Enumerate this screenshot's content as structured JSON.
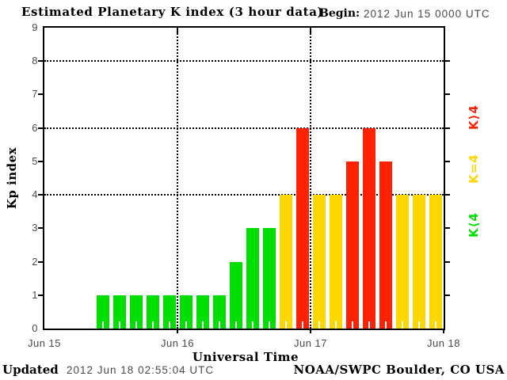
{
  "header": {
    "title": "Estimated Planetary K index (3 hour data)",
    "begin_label": "Begin:",
    "begin_value": "2012 Jun 15 0000 UTC"
  },
  "footer": {
    "updated_label": "Updated",
    "updated_value": "2012 Jun 18 02:55:04 UTC",
    "credit": "NOAA/SWPC Boulder, CO USA"
  },
  "chart_data": {
    "type": "bar",
    "title": "Estimated Planetary K index (3 hour data)",
    "begin": "2012 Jun 15 0000 UTC",
    "xlabel": "Universal Time",
    "ylabel": "Kp index",
    "ylim": [
      0,
      9
    ],
    "yticks": [
      0,
      1,
      2,
      3,
      4,
      5,
      6,
      7,
      8,
      9
    ],
    "grid_y": [
      4,
      6,
      8
    ],
    "grid_day_indices": [
      1,
      2
    ],
    "day_labels": [
      "Jun 15",
      "Jun 16",
      "Jun 17",
      "Jun 18"
    ],
    "hours_per_bar": 3,
    "bars_per_day": 8,
    "values": [
      null,
      null,
      null,
      1,
      1,
      1,
      1,
      1,
      1,
      1,
      1,
      2,
      3,
      3,
      4,
      6,
      4,
      4,
      5,
      6,
      5,
      4,
      4,
      4
    ],
    "color_rule": {
      "threshold": 4,
      "below": "#00dd00",
      "equal": "#ffd700",
      "above": "#ff2200"
    },
    "legend": [
      {
        "label": "K⟩4",
        "color": "#ff2200"
      },
      {
        "label": "K=4",
        "color": "#ffd700"
      },
      {
        "label": "K⟨4",
        "color": "#00dd00"
      }
    ],
    "legend_position": "right",
    "grid": true
  }
}
